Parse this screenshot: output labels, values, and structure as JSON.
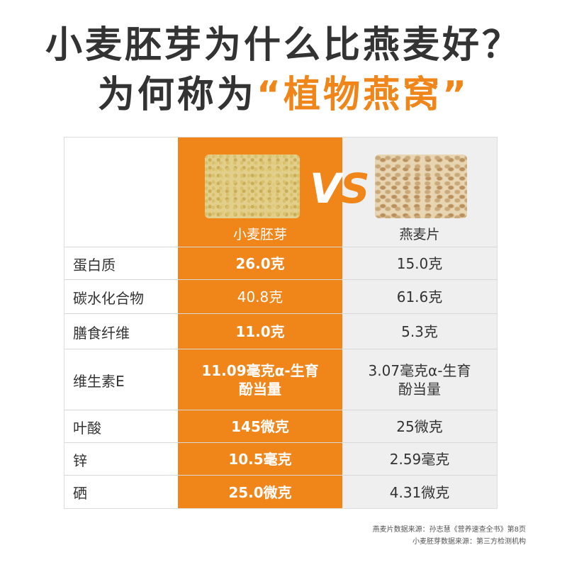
{
  "title": {
    "line1": "小麦胚芽为什么比燕麦好？",
    "line2_prefix": "为何称为",
    "line2_highlight": "“植物燕窝”"
  },
  "comparison": {
    "vs_v": "V",
    "vs_s": "S",
    "col_left_label": "小麦胚芽",
    "col_right_label": "燕麦片",
    "rows": [
      {
        "name": "蛋白质",
        "wheat": "26.0克",
        "oat": "15.0克"
      },
      {
        "name": "碳水化合物",
        "wheat": "40.8克",
        "oat": "61.6克"
      },
      {
        "name": "膳食纤维",
        "wheat": "11.0克",
        "oat": "5.3克"
      },
      {
        "name": "维生素E",
        "wheat": "11.09毫克α-生育酚当量",
        "oat": "3.07毫克α-生育酚当量"
      },
      {
        "name": "叶酸",
        "wheat": "145微克",
        "oat": "25微克"
      },
      {
        "name": "锌",
        "wheat": "10.5毫克",
        "oat": "2.59毫克"
      },
      {
        "name": "硒",
        "wheat": "25.0微克",
        "oat": "4.31微克"
      }
    ]
  },
  "sources": {
    "line1": "燕麦片数据来源：孙志慧《营养速查全书》第8页",
    "line2": "小麦胚芽数据来源：第三方检测机构"
  },
  "colors": {
    "accent": "#f08519",
    "oat_column": "#efefef",
    "text": "#333333"
  }
}
